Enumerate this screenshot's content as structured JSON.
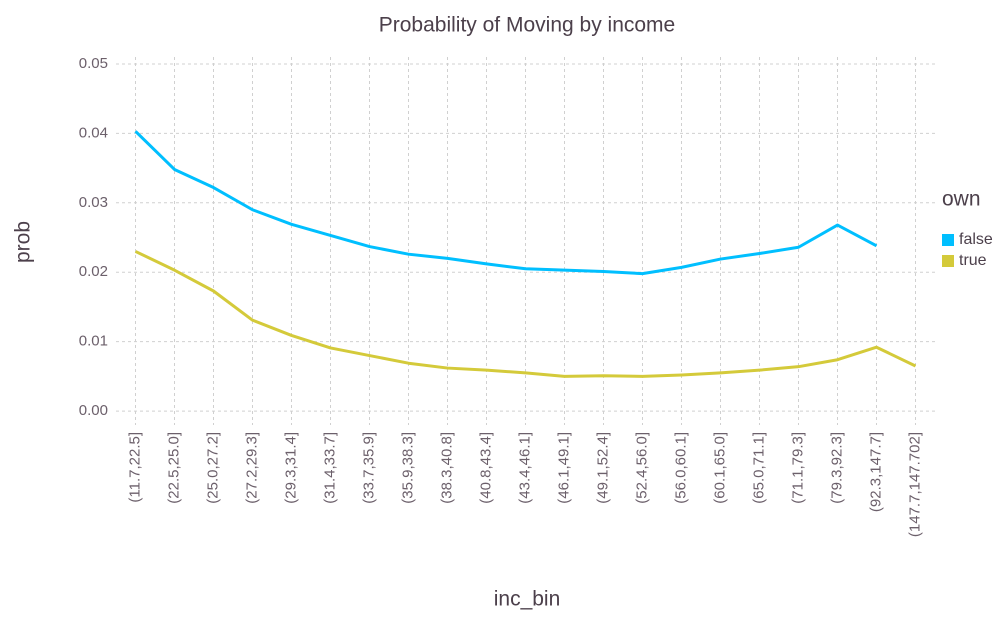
{
  "chart_data": {
    "type": "line",
    "title": "Probability of Moving by income",
    "x_label": "inc_bin",
    "y_label": "prob",
    "categories": [
      "(11.7,22.5]",
      "(22.5,25.0]",
      "(25.0,27.2]",
      "(27.2,29.3]",
      "(29.3,31.4]",
      "(31.4,33.7]",
      "(33.7,35.9]",
      "(35.9,38.3]",
      "(38.3,40.8]",
      "(40.8,43.4]",
      "(43.4,46.1]",
      "(46.1,49.1]",
      "(49.1,52.4]",
      "(52.4,56.0]",
      "(56.0,60.1]",
      "(60.1,65.0]",
      "(65.0,71.1]",
      "(71.1,79.3]",
      "(79.3,92.3]",
      "(92.3,147.7]",
      "(147.7,147.702]"
    ],
    "series": [
      {
        "name": "false",
        "color": "#00bfff",
        "values": [
          0.0403,
          0.0348,
          0.0322,
          0.029,
          0.0269,
          0.0253,
          0.0237,
          0.0226,
          0.022,
          0.0212,
          0.0205,
          0.0203,
          0.0201,
          0.0198,
          0.0207,
          0.0219,
          0.0227,
          0.0236,
          0.0268,
          0.0238,
          null
        ]
      },
      {
        "name": "true",
        "color": "#d4ca3a",
        "values": [
          0.023,
          0.0203,
          0.0173,
          0.0131,
          0.0109,
          0.0091,
          0.008,
          0.0069,
          0.0062,
          0.0059,
          0.0055,
          0.005,
          0.0051,
          0.005,
          0.0052,
          0.0055,
          0.0059,
          0.0064,
          0.0074,
          0.0092,
          0.0065
        ]
      }
    ],
    "legend_title": "own",
    "ylim": [
      -0.002,
      0.051
    ],
    "yticks": [
      {
        "value": 0,
        "label": "0.00"
      },
      {
        "value": 0.01,
        "label": "0.01"
      },
      {
        "value": 0.02,
        "label": "0.02"
      },
      {
        "value": 0.03,
        "label": "0.03"
      },
      {
        "value": 0.04,
        "label": "0.04"
      },
      {
        "value": 0.05,
        "label": "0.05"
      }
    ],
    "grid": true
  }
}
